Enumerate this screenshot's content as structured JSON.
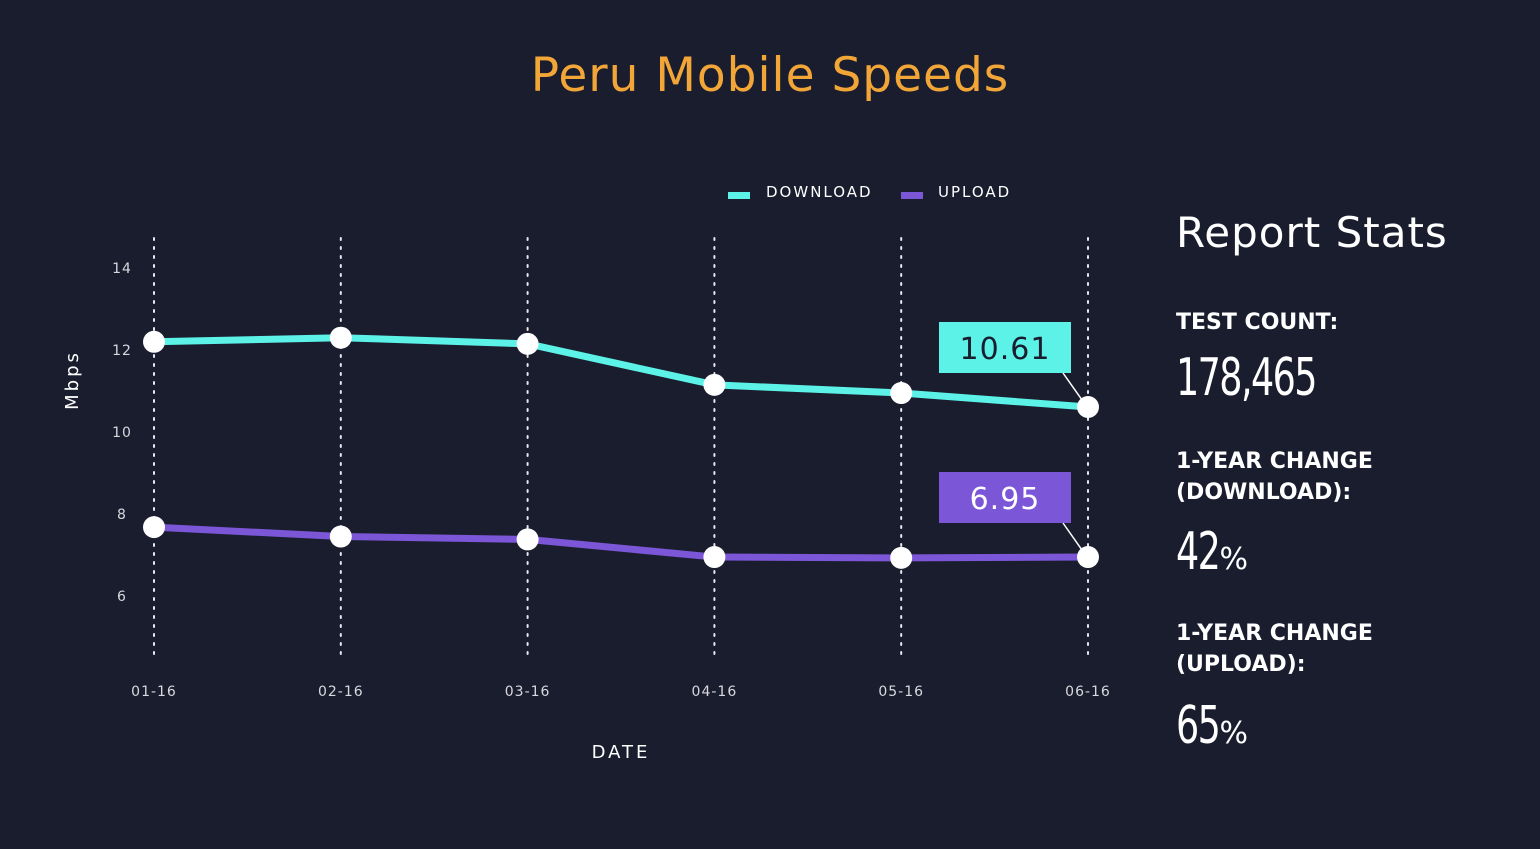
{
  "title": "Peru Mobile Speeds",
  "colors": {
    "background": "#1a1d2e",
    "title": "#f3a638",
    "download": "#5cf2e8",
    "upload": "#7b56d6",
    "text": "#ffffff"
  },
  "chart_data": {
    "type": "line",
    "title": "Peru Mobile Speeds",
    "xlabel": "DATE",
    "ylabel": "Mbps",
    "categories": [
      "01-16",
      "02-16",
      "03-16",
      "04-16",
      "05-16",
      "06-16"
    ],
    "yticks": [
      6,
      8,
      10,
      12,
      14
    ],
    "ylim": [
      4.5,
      14.5
    ],
    "grid": "vertical dotted",
    "legend_position": "top",
    "series": [
      {
        "name": "DOWNLOAD",
        "color": "#5cf2e8",
        "values": [
          12.2,
          12.3,
          12.15,
          11.15,
          10.95,
          10.61
        ],
        "callout": "10.61"
      },
      {
        "name": "UPLOAD",
        "color": "#7b56d6",
        "values": [
          7.68,
          7.45,
          7.38,
          6.95,
          6.93,
          6.95
        ],
        "callout": "6.95"
      }
    ]
  },
  "stats": {
    "heading": "Report Stats",
    "test_count_label": "TEST COUNT:",
    "test_count_value": "178,465",
    "download_change_label_1": "1-YEAR CHANGE",
    "download_change_label_2": "(DOWNLOAD):",
    "download_change_value": "42",
    "upload_change_label_1": "1-YEAR CHANGE",
    "upload_change_label_2": "(UPLOAD):",
    "upload_change_value": "65",
    "percent_suffix": "%"
  }
}
